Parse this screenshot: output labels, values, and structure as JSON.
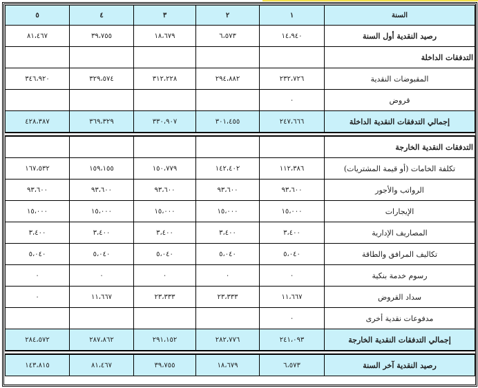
{
  "header": {
    "label": "السنة",
    "years": [
      "١",
      "٢",
      "٣",
      "٤",
      "٥"
    ]
  },
  "rows": [
    {
      "label": "رصيد النقدية أول السنة",
      "values": [
        "١٤،٩٤٠",
        "٦،٥٧٣",
        "١٨،٦٧٩",
        "٣٩،٧٥٥",
        "٨١،٤٦٧"
      ],
      "type": "bold"
    },
    {
      "label": "التدفقات الداخلة",
      "values": [
        "",
        "",
        "",
        "",
        ""
      ],
      "type": "section"
    },
    {
      "label": "المقبوضات النقدية",
      "values": [
        "٢٣٢،٧٢٦",
        "٢٩٤،٨٨٢",
        "٣١٢،٢٢٨",
        "٣٢٩،٥٧٤",
        "٣٤٦،٩٢٠"
      ],
      "type": "normal"
    },
    {
      "label": "قروض",
      "values": [
        "٠",
        "",
        "",
        "",
        ""
      ],
      "type": "normal"
    },
    {
      "label": "إجمالي التدفقات النقدية الداخلة",
      "values": [
        "٢٤٧،٦٦٦",
        "٣٠١،٤٥٥",
        "٣٣٠،٩٠٧",
        "٣٦٩،٣٢٩",
        "٤٢٨،٣٨٧"
      ],
      "type": "total"
    },
    {
      "label": "التدفقات النقدية الخارجة",
      "values": [
        "",
        "",
        "",
        "",
        ""
      ],
      "type": "section"
    },
    {
      "label": "تكلفة الخامات (أو قيمة المشتريات)",
      "values": [
        "١١٢،٣٨٦",
        "١٤٢،٤٠٢",
        "١٥٠،٧٧٩",
        "١٥٩،١٥٥",
        "١٦٧،٥٣٢"
      ],
      "type": "normal"
    },
    {
      "label": "الرواتب والأجور",
      "values": [
        "٩٣،٦٠٠",
        "٩٣،٦٠٠",
        "٩٣،٦٠٠",
        "٩٣،٦٠٠",
        "٩٣،٦٠٠"
      ],
      "type": "normal"
    },
    {
      "label": "الإيجارات",
      "values": [
        "١٥،٠٠٠",
        "١٥،٠٠٠",
        "١٥،٠٠٠",
        "١٥،٠٠٠",
        "١٥،٠٠٠"
      ],
      "type": "normal"
    },
    {
      "label": "المصاريف الإدارية",
      "values": [
        "٣،٤٠٠",
        "٣،٤٠٠",
        "٣،٤٠٠",
        "٣،٤٠٠",
        "٣،٤٠٠"
      ],
      "type": "normal"
    },
    {
      "label": "تكاليف المرافق والطاقة",
      "values": [
        "٥،٠٤٠",
        "٥،٠٤٠",
        "٥،٠٤٠",
        "٥،٠٤٠",
        "٥،٠٤٠"
      ],
      "type": "normal"
    },
    {
      "label": "رسوم خدمة بنكية",
      "values": [
        "٠",
        "٠",
        "٠",
        "٠",
        "٠"
      ],
      "type": "normal"
    },
    {
      "label": "سداد القروض",
      "values": [
        "١١،٦٦٧",
        "٢٣،٣٣٣",
        "٢٣،٣٣٣",
        "١١،٦٦٧",
        "٠"
      ],
      "type": "normal"
    },
    {
      "label": "مدفوعات نقدية أخرى",
      "values": [
        "٠",
        "",
        "",
        "",
        ""
      ],
      "type": "normal"
    },
    {
      "label": "إجمالي التدفقات النقدية الخارجة",
      "values": [
        "٢٤١،٠٩٣",
        "٢٨٢،٧٧٦",
        "٢٩١،١٥٢",
        "٢٨٧،٨٦٢",
        "٢٨٤،٥٧٢"
      ],
      "type": "total"
    },
    {
      "label": "رصيد النقدية آخر السنة",
      "values": [
        "٦،٥٧٣",
        "١٨،٦٧٩",
        "٣٩،٧٥٥",
        "٨١،٤٦٧",
        "١٤٣،٨١٥"
      ],
      "type": "total"
    }
  ],
  "colors": {
    "header_bg": "#c9f1fa"
  }
}
